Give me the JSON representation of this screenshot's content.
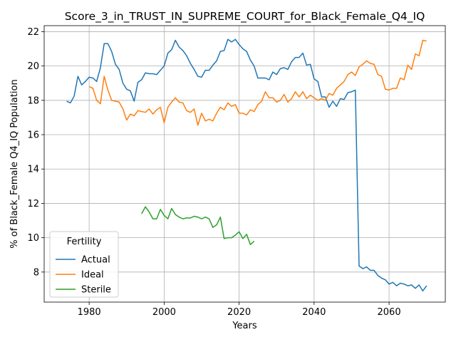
{
  "chart_data": {
    "type": "line",
    "title": "Score_3_in_TRUST_IN_SUPREME_COURT_for_Black_Female_Q4_IQ",
    "xlabel": "Years",
    "ylabel": "% of Black_Female Q4_IQ Population",
    "xlim": [
      1968,
      2075
    ],
    "ylim": [
      6.25,
      22.35
    ],
    "xticks": [
      1980,
      2000,
      2020,
      2040,
      2060
    ],
    "yticks": [
      8,
      10,
      12,
      14,
      16,
      18,
      20,
      22
    ],
    "grid": true,
    "legend": {
      "title": "Fertility",
      "placement": "bottom-left"
    },
    "series": [
      {
        "name": "Actual",
        "color": "#1f77b4",
        "points": [
          [
            1974,
            17.95
          ],
          [
            1975,
            17.85
          ],
          [
            1976,
            18.25
          ],
          [
            1977,
            19.4
          ],
          [
            1978,
            18.9
          ],
          [
            1979,
            19.1
          ],
          [
            1980,
            19.35
          ],
          [
            1981,
            19.3
          ],
          [
            1982,
            19.1
          ],
          [
            1983,
            19.9
          ],
          [
            1984,
            21.3
          ],
          [
            1985,
            21.3
          ],
          [
            1986,
            20.85
          ],
          [
            1987,
            20.1
          ],
          [
            1988,
            19.8
          ],
          [
            1989,
            19.0
          ],
          [
            1990,
            18.65
          ],
          [
            1991,
            18.55
          ],
          [
            1992,
            17.95
          ],
          [
            1993,
            19.05
          ],
          [
            1994,
            19.2
          ],
          [
            1995,
            19.6
          ],
          [
            1996,
            19.55
          ],
          [
            1997,
            19.55
          ],
          [
            1998,
            19.5
          ],
          [
            1999,
            19.75
          ],
          [
            2000,
            20.0
          ],
          [
            2001,
            20.75
          ],
          [
            2002,
            20.95
          ],
          [
            2003,
            21.5
          ],
          [
            2004,
            21.1
          ],
          [
            2005,
            20.9
          ],
          [
            2006,
            20.6
          ],
          [
            2007,
            20.15
          ],
          [
            2008,
            19.8
          ],
          [
            2009,
            19.4
          ],
          [
            2010,
            19.35
          ],
          [
            2011,
            19.75
          ],
          [
            2012,
            19.75
          ],
          [
            2013,
            20.05
          ],
          [
            2014,
            20.3
          ],
          [
            2015,
            20.85
          ],
          [
            2016,
            20.9
          ],
          [
            2017,
            21.55
          ],
          [
            2018,
            21.4
          ],
          [
            2019,
            21.55
          ],
          [
            2020,
            21.25
          ],
          [
            2021,
            21.0
          ],
          [
            2022,
            20.85
          ],
          [
            2023,
            20.35
          ],
          [
            2024,
            20.0
          ],
          [
            2025,
            19.3
          ],
          [
            2026,
            19.3
          ],
          [
            2027,
            19.3
          ],
          [
            2028,
            19.2
          ],
          [
            2029,
            19.65
          ],
          [
            2030,
            19.5
          ],
          [
            2031,
            19.85
          ],
          [
            2032,
            19.9
          ],
          [
            2033,
            19.8
          ],
          [
            2034,
            20.25
          ],
          [
            2035,
            20.5
          ],
          [
            2036,
            20.5
          ],
          [
            2037,
            20.75
          ],
          [
            2038,
            20.05
          ],
          [
            2039,
            20.1
          ],
          [
            2040,
            19.25
          ],
          [
            2041,
            19.1
          ],
          [
            2042,
            18.2
          ],
          [
            2043,
            18.2
          ],
          [
            2044,
            17.6
          ],
          [
            2045,
            17.95
          ],
          [
            2046,
            17.65
          ],
          [
            2047,
            18.1
          ],
          [
            2048,
            18.05
          ],
          [
            2049,
            18.45
          ],
          [
            2050,
            18.5
          ],
          [
            2051,
            18.6
          ],
          [
            2052,
            8.35
          ],
          [
            2053,
            8.2
          ],
          [
            2054,
            8.3
          ],
          [
            2055,
            8.1
          ],
          [
            2056,
            8.1
          ],
          [
            2057,
            7.8
          ],
          [
            2058,
            7.65
          ],
          [
            2059,
            7.55
          ],
          [
            2060,
            7.3
          ],
          [
            2061,
            7.4
          ],
          [
            2062,
            7.2
          ],
          [
            2063,
            7.35
          ],
          [
            2064,
            7.3
          ],
          [
            2065,
            7.2
          ],
          [
            2066,
            7.25
          ],
          [
            2067,
            7.05
          ],
          [
            2068,
            7.25
          ],
          [
            2069,
            6.9
          ],
          [
            2070,
            7.2
          ]
        ]
      },
      {
        "name": "Ideal",
        "color": "#ff7f0e",
        "points": [
          [
            1980,
            18.8
          ],
          [
            1981,
            18.7
          ],
          [
            1982,
            18.0
          ],
          [
            1983,
            17.8
          ],
          [
            1984,
            19.4
          ],
          [
            1985,
            18.6
          ],
          [
            1986,
            18.0
          ],
          [
            1987,
            17.95
          ],
          [
            1988,
            17.9
          ],
          [
            1989,
            17.5
          ],
          [
            1990,
            16.85
          ],
          [
            1991,
            17.2
          ],
          [
            1992,
            17.1
          ],
          [
            1993,
            17.4
          ],
          [
            1994,
            17.35
          ],
          [
            1995,
            17.3
          ],
          [
            1996,
            17.5
          ],
          [
            1997,
            17.2
          ],
          [
            1998,
            17.45
          ],
          [
            1999,
            17.6
          ],
          [
            2000,
            16.7
          ],
          [
            2001,
            17.6
          ],
          [
            2002,
            17.9
          ],
          [
            2003,
            18.15
          ],
          [
            2004,
            17.9
          ],
          [
            2005,
            17.85
          ],
          [
            2006,
            17.4
          ],
          [
            2007,
            17.3
          ],
          [
            2008,
            17.5
          ],
          [
            2009,
            16.55
          ],
          [
            2010,
            17.25
          ],
          [
            2011,
            16.8
          ],
          [
            2012,
            16.9
          ],
          [
            2013,
            16.8
          ],
          [
            2014,
            17.25
          ],
          [
            2015,
            17.6
          ],
          [
            2016,
            17.45
          ],
          [
            2017,
            17.85
          ],
          [
            2018,
            17.65
          ],
          [
            2019,
            17.75
          ],
          [
            2020,
            17.25
          ],
          [
            2021,
            17.25
          ],
          [
            2022,
            17.15
          ],
          [
            2023,
            17.45
          ],
          [
            2024,
            17.35
          ],
          [
            2025,
            17.75
          ],
          [
            2026,
            17.95
          ],
          [
            2027,
            18.5
          ],
          [
            2028,
            18.15
          ],
          [
            2029,
            18.15
          ],
          [
            2030,
            17.9
          ],
          [
            2031,
            18.0
          ],
          [
            2032,
            18.35
          ],
          [
            2033,
            17.9
          ],
          [
            2034,
            18.1
          ],
          [
            2035,
            18.5
          ],
          [
            2036,
            18.2
          ],
          [
            2037,
            18.5
          ],
          [
            2038,
            18.1
          ],
          [
            2039,
            18.3
          ],
          [
            2040,
            18.15
          ],
          [
            2041,
            18.0
          ],
          [
            2042,
            18.1
          ],
          [
            2043,
            18.0
          ],
          [
            2044,
            18.4
          ],
          [
            2045,
            18.3
          ],
          [
            2046,
            18.7
          ],
          [
            2047,
            18.9
          ],
          [
            2048,
            19.1
          ],
          [
            2049,
            19.5
          ],
          [
            2050,
            19.65
          ],
          [
            2051,
            19.45
          ],
          [
            2052,
            19.95
          ],
          [
            2053,
            20.1
          ],
          [
            2054,
            20.3
          ],
          [
            2055,
            20.15
          ],
          [
            2056,
            20.1
          ],
          [
            2057,
            19.5
          ],
          [
            2058,
            19.4
          ],
          [
            2059,
            18.65
          ],
          [
            2060,
            18.6
          ],
          [
            2061,
            18.7
          ],
          [
            2062,
            18.7
          ],
          [
            2063,
            19.3
          ],
          [
            2064,
            19.2
          ],
          [
            2065,
            20.05
          ],
          [
            2066,
            19.8
          ],
          [
            2067,
            20.7
          ],
          [
            2068,
            20.6
          ],
          [
            2069,
            21.5
          ],
          [
            2070,
            21.45
          ]
        ]
      },
      {
        "name": "Sterile",
        "color": "#2ca02c",
        "points": [
          [
            1994,
            11.4
          ],
          [
            1995,
            11.8
          ],
          [
            1996,
            11.5
          ],
          [
            1997,
            11.1
          ],
          [
            1998,
            11.1
          ],
          [
            1999,
            11.65
          ],
          [
            2000,
            11.3
          ],
          [
            2001,
            11.1
          ],
          [
            2002,
            11.7
          ],
          [
            2003,
            11.35
          ],
          [
            2004,
            11.2
          ],
          [
            2005,
            11.1
          ],
          [
            2006,
            11.15
          ],
          [
            2007,
            11.15
          ],
          [
            2008,
            11.25
          ],
          [
            2009,
            11.2
          ],
          [
            2010,
            11.1
          ],
          [
            2011,
            11.2
          ],
          [
            2012,
            11.1
          ],
          [
            2013,
            10.6
          ],
          [
            2014,
            10.75
          ],
          [
            2015,
            11.2
          ],
          [
            2016,
            9.95
          ],
          [
            2017,
            10.0
          ],
          [
            2018,
            10.0
          ],
          [
            2019,
            10.15
          ],
          [
            2020,
            10.35
          ],
          [
            2021,
            9.95
          ],
          [
            2022,
            10.2
          ],
          [
            2023,
            9.6
          ],
          [
            2024,
            9.8
          ]
        ]
      }
    ]
  }
}
